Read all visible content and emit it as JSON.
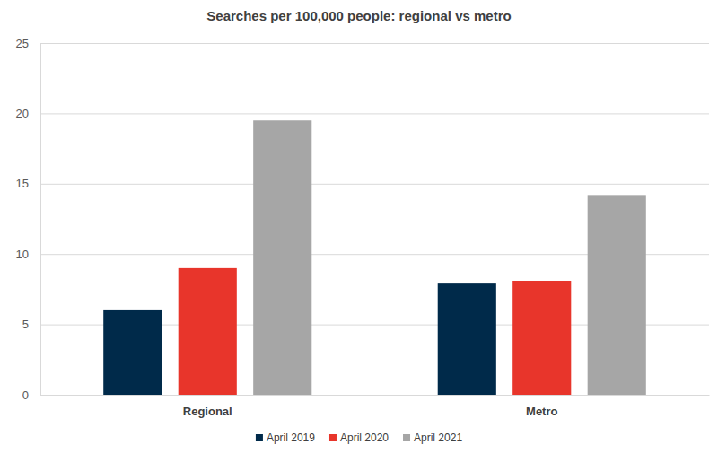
{
  "chart_data": {
    "type": "bar",
    "title": "Searches per 100,000 people: regional vs metro",
    "categories": [
      "Regional",
      "Metro"
    ],
    "series": [
      {
        "name": "April 2019",
        "color": "#002a4a",
        "values": [
          6.0,
          7.9
        ]
      },
      {
        "name": "April 2020",
        "color": "#e8352b",
        "values": [
          9.0,
          8.1
        ]
      },
      {
        "name": "April 2021",
        "color": "#a6a6a6",
        "values": [
          19.5,
          14.2
        ]
      }
    ],
    "ylim": [
      0,
      25
    ],
    "yticks": [
      0,
      5,
      10,
      15,
      20,
      25
    ],
    "grid": true,
    "legend": "bottom"
  }
}
